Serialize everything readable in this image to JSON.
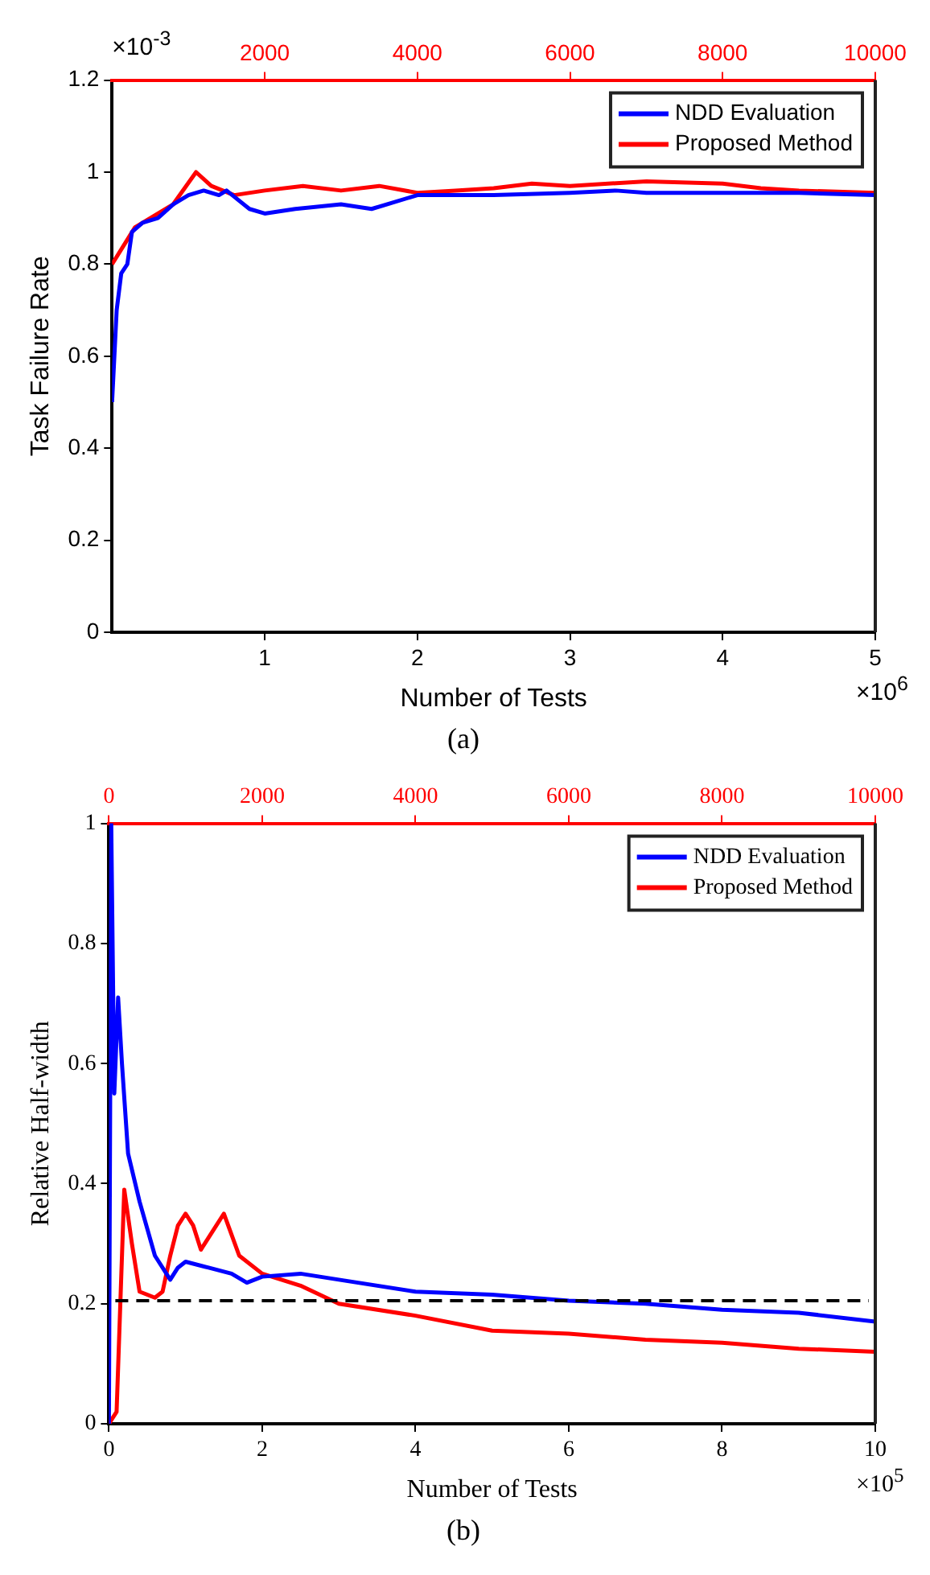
{
  "chart_data": [
    {
      "type": "line",
      "ylabel": "Task Failure Rate",
      "xlabel": "Number of Tests",
      "xlim": [
        0,
        5
      ],
      "xticks": [
        1,
        2,
        3,
        4,
        5
      ],
      "x2lim": [
        0,
        10000
      ],
      "x2ticks": [
        2000,
        4000,
        6000,
        8000,
        10000
      ],
      "ylim": [
        0,
        1.2
      ],
      "yticks": [
        0,
        0.2,
        0.4,
        0.6,
        0.8,
        1,
        1.2
      ],
      "grid": false,
      "legend": "top right",
      "line_style": "solid",
      "marker": "none",
      "annotations": [
        "×10$^{-3}$",
        "×10$^{6}$",
        "(a)"
      ],
      "series": [
        {
          "name": "NDD Evaluation",
          "color": "#0000ff",
          "x": [
            0,
            0.03,
            0.06,
            0.1,
            0.13,
            0.2,
            0.3,
            0.4,
            0.5,
            0.6,
            0.7,
            0.75,
            0.9,
            1.0,
            1.2,
            1.5,
            1.7,
            2.0,
            2.5,
            3.0,
            3.3,
            3.5,
            4.0,
            4.5,
            5
          ],
          "values": [
            0.5,
            0.7,
            0.78,
            0.8,
            0.87,
            0.89,
            0.9,
            0.93,
            0.95,
            0.96,
            0.95,
            0.96,
            0.92,
            0.91,
            0.92,
            0.93,
            0.92,
            0.95,
            0.95,
            0.955,
            0.96,
            0.955,
            0.955,
            0.955,
            0.95
          ]
        },
        {
          "name": "Proposed Method",
          "color": "#ff0000",
          "axis": "x2",
          "x": [
            0,
            300,
            800,
            1100,
            1300,
            1600,
            2000,
            2500,
            3000,
            3500,
            4000,
            4500,
            5000,
            5500,
            6000,
            7000,
            8000,
            8500,
            9000,
            10000
          ],
          "values": [
            0.8,
            0.88,
            0.93,
            1.0,
            0.97,
            0.95,
            0.96,
            0.97,
            0.96,
            0.97,
            0.955,
            0.96,
            0.965,
            0.975,
            0.97,
            0.98,
            0.975,
            0.965,
            0.96,
            0.955
          ]
        }
      ]
    },
    {
      "type": "line",
      "ylabel": "Relative Half-width",
      "xlabel": "Number of Tests",
      "xlim": [
        0,
        10
      ],
      "xticks": [
        0,
        2,
        4,
        6,
        8,
        10
      ],
      "x2lim": [
        0,
        10000
      ],
      "x2ticks": [
        0,
        2000,
        4000,
        6000,
        8000,
        10000
      ],
      "ylim": [
        0,
        1
      ],
      "yticks": [
        0,
        0.2,
        0.4,
        0.6,
        0.8,
        1
      ],
      "grid": false,
      "legend": "top right",
      "line_style": "solid",
      "marker": "none",
      "ref_lines": [
        {
          "axis": "y",
          "value": 0.205,
          "label": null,
          "color": "#000000",
          "line_style": "dashed"
        }
      ],
      "annotations": [
        "×10$^{5}$",
        "(b)"
      ],
      "series": [
        {
          "name": "NDD Evaluation",
          "color": "#0000ff",
          "x": [
            0,
            0.03,
            0.07,
            0.12,
            0.17,
            0.25,
            0.4,
            0.6,
            0.8,
            0.9,
            1.0,
            1.3,
            1.6,
            1.8,
            2.0,
            2.5,
            3,
            4,
            5,
            6,
            7,
            8,
            9,
            10
          ],
          "values": [
            0,
            1.0,
            0.55,
            0.71,
            0.6,
            0.45,
            0.37,
            0.28,
            0.24,
            0.26,
            0.27,
            0.26,
            0.25,
            0.235,
            0.245,
            0.25,
            0.24,
            0.22,
            0.215,
            0.205,
            0.2,
            0.19,
            0.185,
            0.17
          ]
        },
        {
          "name": "Proposed Method",
          "color": "#ff0000",
          "axis": "x2",
          "x": [
            0,
            100,
            200,
            300,
            400,
            600,
            700,
            800,
            900,
            1000,
            1100,
            1200,
            1300,
            1500,
            1700,
            2000,
            2500,
            3000,
            4000,
            5000,
            6000,
            7000,
            8000,
            9000,
            10000
          ],
          "values": [
            0,
            0.02,
            0.39,
            0.3,
            0.22,
            0.21,
            0.22,
            0.28,
            0.33,
            0.35,
            0.33,
            0.29,
            0.31,
            0.35,
            0.28,
            0.25,
            0.23,
            0.2,
            0.18,
            0.155,
            0.15,
            0.14,
            0.135,
            0.125,
            0.12
          ]
        }
      ]
    }
  ]
}
